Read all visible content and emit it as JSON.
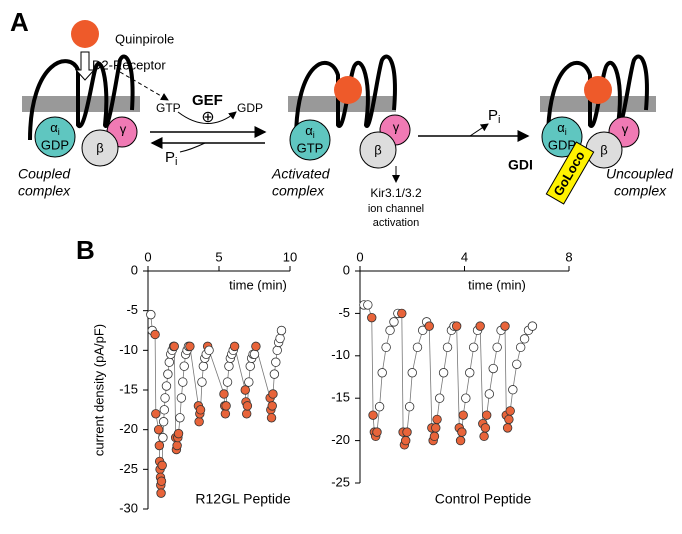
{
  "figure": {
    "panel_a": "A",
    "panel_b": "B",
    "ligand": "Quinpirole",
    "receptor": "D2-Receptor",
    "gtp": "GTP",
    "gef": "GEF",
    "gdp": "GDP",
    "plus": "⊕",
    "pi": {
      "main": "P",
      "sub": "i"
    },
    "alpha": {
      "main": "α",
      "sub": "i"
    },
    "beta": "β",
    "gamma": "γ",
    "coupled": [
      "Coupled",
      "complex"
    ],
    "activated": [
      "Activated",
      "complex"
    ],
    "uncoupled": [
      "Uncoupled",
      "complex"
    ],
    "effect": [
      "Kir3.1/3.2",
      "ion channel",
      "activation"
    ],
    "gdi": "GDI",
    "goloco": "GoLoco",
    "nucleotides": [
      "GDP",
      "GTP",
      "GDP"
    ]
  },
  "chart_data": [
    {
      "type": "scatter",
      "x_label": "time (min)",
      "y_label": "current density (pA/pF)",
      "caption": "R12GL Peptide",
      "xlim": [
        0,
        10
      ],
      "xticks": [
        0,
        5,
        10
      ],
      "ylim": [
        -30,
        0
      ],
      "yticks": [
        0,
        -5,
        -10,
        -15,
        -20,
        -25,
        -30
      ],
      "line_color": "#777",
      "series": [
        {
          "x": [
            0.2,
            0.3,
            0.5,
            0.55,
            0.75,
            0.8,
            0.82,
            0.85,
            0.88,
            0.9,
            0.92,
            0.95,
            1.0,
            1.05,
            1.1,
            1.15,
            1.2,
            1.3,
            1.4,
            1.5,
            1.6,
            1.7,
            1.8,
            1.85,
            1.95,
            2.0,
            2.05,
            2.1,
            2.15,
            2.25,
            2.35,
            2.45,
            2.55,
            2.65,
            2.75,
            2.85,
            2.95,
            3.55,
            3.6,
            3.65,
            3.7,
            3.8,
            3.9,
            4.0,
            4.1,
            4.2,
            4.3,
            5.35,
            5.4,
            5.45,
            5.5,
            5.6,
            5.7,
            5.8,
            5.9,
            6.0,
            6.1,
            6.85,
            6.9,
            6.95,
            7.0,
            7.1,
            7.2,
            7.3,
            7.4,
            7.5,
            7.6,
            8.6,
            8.65,
            8.7,
            8.75,
            8.8,
            8.9,
            9.0,
            9.1,
            9.2,
            9.3,
            9.4
          ],
          "values": [
            -5.5,
            -7.5,
            -8,
            -18,
            -20,
            -22,
            -24,
            -25,
            -26,
            -27,
            -28,
            -26.5,
            -24.5,
            -21,
            -19,
            -17.5,
            -16,
            -14.5,
            -13,
            -11.5,
            -10.5,
            -10,
            -9.5,
            -9.5,
            -21,
            -22.5,
            -22,
            -21,
            -20.5,
            -18.5,
            -16,
            -14,
            -12,
            -10.5,
            -10,
            -9.5,
            -9.5,
            -17,
            -19,
            -18,
            -17.5,
            -14,
            -12,
            -11,
            -10.5,
            -9.5,
            -10,
            -15.5,
            -17,
            -18,
            -17,
            -14,
            -12,
            -11,
            -10.5,
            -10,
            -9.5,
            -15,
            -16.5,
            -18,
            -17,
            -14,
            -12,
            -11,
            -10.5,
            -10.5,
            -9.5,
            -16,
            -17.5,
            -18.5,
            -17,
            -15.5,
            -13,
            -11.5,
            -10,
            -9,
            -8.5,
            -7.5
          ],
          "point_colors": [
            "#fff",
            "#fff",
            "#e8643a",
            "#e8643a",
            "#e8643a",
            "#e8643a",
            "#e8643a",
            "#e8643a",
            "#e8643a",
            "#e8643a",
            "#e8643a",
            "#e8643a",
            "#e8643a",
            "#fff",
            "#fff",
            "#fff",
            "#fff",
            "#fff",
            "#fff",
            "#fff",
            "#fff",
            "#fff",
            "#fff",
            "#e8643a",
            "#e8643a",
            "#e8643a",
            "#e8643a",
            "#e8643a",
            "#e8643a",
            "#fff",
            "#fff",
            "#fff",
            "#fff",
            "#fff",
            "#fff",
            "#fff",
            "#e8643a",
            "#e8643a",
            "#e8643a",
            "#e8643a",
            "#e8643a",
            "#fff",
            "#fff",
            "#fff",
            "#fff",
            "#e8643a",
            "#fff",
            "#e8643a",
            "#e8643a",
            "#e8643a",
            "#e8643a",
            "#fff",
            "#fff",
            "#fff",
            "#fff",
            "#fff",
            "#e8643a",
            "#e8643a",
            "#e8643a",
            "#e8643a",
            "#e8643a",
            "#fff",
            "#fff",
            "#fff",
            "#fff",
            "#fff",
            "#e8643a",
            "#e8643a",
            "#e8643a",
            "#e8643a",
            "#e8643a",
            "#e8643a",
            "#fff",
            "#fff",
            "#fff",
            "#fff",
            "#fff",
            "#fff"
          ]
        }
      ]
    },
    {
      "type": "scatter",
      "x_label": "time (min)",
      "caption": "Control Peptide",
      "xlim": [
        0,
        8
      ],
      "xticks": [
        0,
        4,
        8
      ],
      "ylim": [
        -25,
        0
      ],
      "yticks": [
        0,
        -5,
        -10,
        -15,
        -20,
        -25
      ],
      "line_color": "#777",
      "series": [
        {
          "x": [
            0.15,
            0.3,
            0.45,
            0.5,
            0.55,
            0.6,
            0.65,
            0.75,
            0.85,
            1.0,
            1.15,
            1.3,
            1.45,
            1.6,
            1.65,
            1.7,
            1.75,
            1.8,
            1.9,
            2.0,
            2.2,
            2.4,
            2.55,
            2.65,
            2.75,
            2.8,
            2.85,
            2.9,
            2.95,
            3.05,
            3.2,
            3.35,
            3.5,
            3.6,
            3.7,
            3.8,
            3.85,
            3.9,
            3.95,
            4.05,
            4.2,
            4.35,
            4.5,
            4.6,
            4.7,
            4.75,
            4.8,
            4.85,
            4.95,
            5.1,
            5.25,
            5.4,
            5.55,
            5.6,
            5.65,
            5.7,
            5.75,
            5.85,
            6.0,
            6.15,
            6.3,
            6.45,
            6.6
          ],
          "values": [
            -4,
            -4,
            -5.5,
            -17,
            -19,
            -19.5,
            -19,
            -16,
            -12,
            -9,
            -7,
            -6,
            -5,
            -5,
            -19,
            -20.5,
            -20,
            -19,
            -16,
            -12,
            -9,
            -7,
            -6,
            -6.5,
            -18.5,
            -20,
            -19.5,
            -18.5,
            -17.5,
            -15,
            -12,
            -9,
            -7,
            -6.5,
            -6.5,
            -18.5,
            -20,
            -19,
            -17,
            -15,
            -12,
            -9,
            -7,
            -6.5,
            -18,
            -19.5,
            -18.5,
            -17,
            -14.5,
            -11.5,
            -9,
            -7,
            -6.5,
            -17,
            -18.5,
            -17.5,
            -16.5,
            -14,
            -11,
            -9,
            -8,
            -7,
            -6.5
          ],
          "point_colors": [
            "#fff",
            "#fff",
            "#e8643a",
            "#e8643a",
            "#e8643a",
            "#e8643a",
            "#e8643a",
            "#fff",
            "#fff",
            "#fff",
            "#fff",
            "#fff",
            "#fff",
            "#e8643a",
            "#e8643a",
            "#e8643a",
            "#e8643a",
            "#e8643a",
            "#fff",
            "#fff",
            "#fff",
            "#fff",
            "#fff",
            "#e8643a",
            "#e8643a",
            "#e8643a",
            "#e8643a",
            "#e8643a",
            "#e8643a",
            "#fff",
            "#fff",
            "#fff",
            "#fff",
            "#fff",
            "#e8643a",
            "#e8643a",
            "#e8643a",
            "#e8643a",
            "#e8643a",
            "#fff",
            "#fff",
            "#fff",
            "#fff",
            "#e8643a",
            "#e8643a",
            "#e8643a",
            "#e8643a",
            "#e8643a",
            "#fff",
            "#fff",
            "#fff",
            "#fff",
            "#e8643a",
            "#e8643a",
            "#e8643a",
            "#e8643a",
            "#e8643a",
            "#fff",
            "#fff",
            "#fff",
            "#fff",
            "#fff",
            "#fff"
          ]
        }
      ]
    }
  ]
}
